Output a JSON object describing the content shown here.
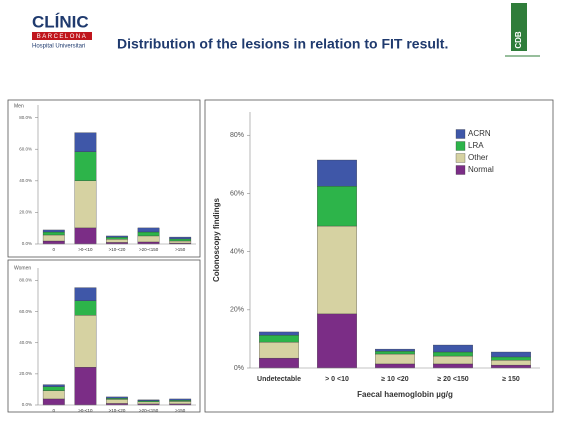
{
  "header": {
    "logo": "CLÍNIC",
    "logo_sub": "BARCELONA",
    "logo_sub2": "Hospital Universitari",
    "title": "Distribution of the lesions in relation to FIT result.",
    "badge": "CDB"
  },
  "chart_data": [
    {
      "type": "bar",
      "stacked": true,
      "title": "Men",
      "categories": [
        "0",
        ">0-<10",
        ">10-<20",
        ">20-<150",
        ">150"
      ],
      "series": [
        {
          "color": "#7b2d86",
          "values": [
            1.9,
            10.2,
            1.0,
            1.3,
            0.6
          ]
        },
        {
          "color": "#d6d2a2",
          "values": [
            3.8,
            29.8,
            2.0,
            3.8,
            1.3
          ]
        },
        {
          "color": "#2db44a",
          "values": [
            1.9,
            18.4,
            1.3,
            2.5,
            1.3
          ]
        },
        {
          "color": "#3f57a8",
          "values": [
            1.3,
            12.1,
            0.8,
            2.6,
            1.2
          ]
        }
      ],
      "ylim": [
        0,
        88
      ],
      "yticks": [
        {
          "value": 0,
          "label": "0.0%"
        },
        {
          "value": 20,
          "label": "20.0%"
        },
        {
          "value": 40,
          "label": "40.0%"
        },
        {
          "value": 60,
          "label": "60.0%"
        },
        {
          "value": 80,
          "label": "80.0%"
        }
      ],
      "grid": false
    },
    {
      "type": "bar",
      "stacked": true,
      "title": "Women",
      "categories": [
        "0",
        ">0-<10",
        ">10-<20",
        ">20-<150",
        ">150"
      ],
      "series": [
        {
          "color": "#7b2d86",
          "values": [
            3.9,
            24.3,
            1.0,
            0.7,
            0.7
          ]
        },
        {
          "color": "#d6d2a2",
          "values": [
            5.3,
            33.4,
            2.6,
            1.3,
            1.6
          ]
        },
        {
          "color": "#2db44a",
          "values": [
            2.6,
            9.2,
            0.8,
            0.7,
            0.8
          ]
        },
        {
          "color": "#3f57a8",
          "values": [
            1.3,
            8.5,
            0.8,
            0.6,
            0.8
          ]
        }
      ],
      "ylim": [
        0,
        88
      ],
      "yticks": [
        {
          "value": 0,
          "label": "0.0%"
        },
        {
          "value": 20,
          "label": "20.0%"
        },
        {
          "value": 40,
          "label": "40.0%"
        },
        {
          "value": 60,
          "label": "60.0%"
        },
        {
          "value": 80,
          "label": "80.0%"
        }
      ],
      "grid": false
    },
    {
      "type": "bar",
      "stacked": true,
      "ylabel": "Colonoscopy findings",
      "xlabel": "Faecal haemoglobin  µg/g",
      "categories": [
        "Undetectable",
        "> 0 <10",
        "≥ 10 <20",
        "≥ 20 <150",
        "≥ 150"
      ],
      "series": [
        {
          "name": "Normal",
          "color": "#7b2d86",
          "values": [
            3.4,
            18.6,
            1.4,
            1.4,
            1.0
          ]
        },
        {
          "name": "Other",
          "color": "#d6d2a2",
          "values": [
            5.5,
            30.2,
            3.4,
            2.7,
            1.7
          ]
        },
        {
          "name": "LRA",
          "color": "#2db44a",
          "values": [
            2.4,
            13.7,
            1.0,
            1.4,
            1.1
          ]
        },
        {
          "name": "ACRN",
          "color": "#3f57a8",
          "values": [
            1.1,
            9.0,
            0.7,
            2.4,
            1.7
          ]
        }
      ],
      "ylim": [
        0,
        88
      ],
      "yticks": [
        {
          "value": 0,
          "label": "0%"
        },
        {
          "value": 20,
          "label": "20%"
        },
        {
          "value": 40,
          "label": "40%"
        },
        {
          "value": 60,
          "label": "60%"
        },
        {
          "value": 80,
          "label": "80%"
        }
      ],
      "grid": false,
      "legend": "upper right"
    }
  ]
}
